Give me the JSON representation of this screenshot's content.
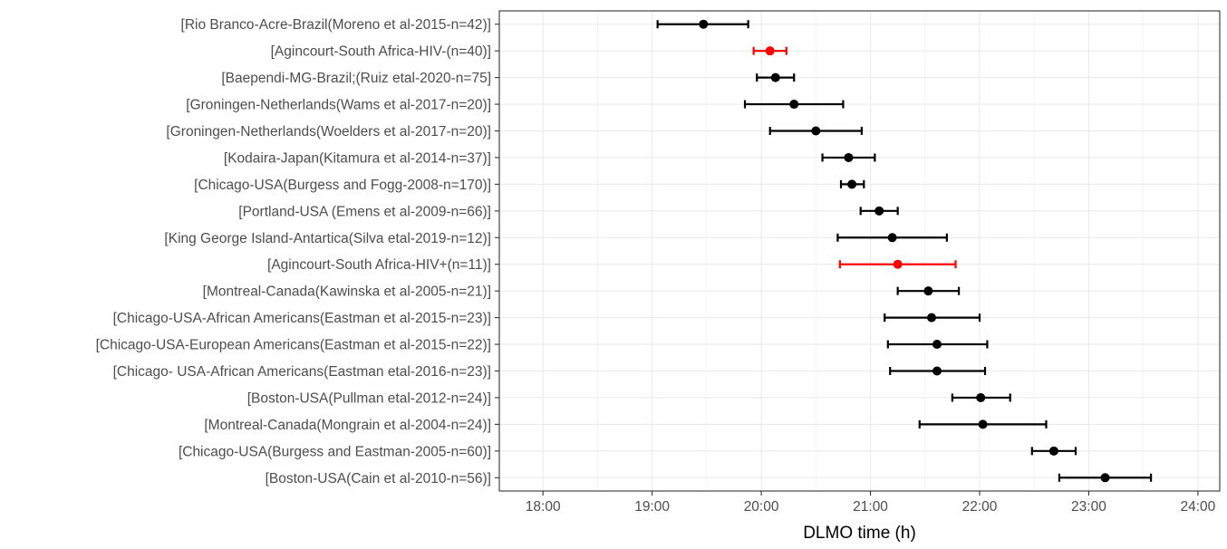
{
  "chart_data": {
    "type": "scatter",
    "title": "",
    "xlabel": "DLMO time (h)",
    "ylabel": "",
    "xlim": [
      17.6,
      24.2
    ],
    "x_ticks": [
      18,
      19,
      20,
      21,
      22,
      23,
      24
    ],
    "x_tick_labels": [
      "18:00",
      "19:00",
      "20:00",
      "21:00",
      "22:00",
      "23:00",
      "24:00"
    ],
    "grid": true,
    "legend": "none",
    "colors": {
      "default": "#000000",
      "highlight": "#ff0000"
    },
    "points": [
      {
        "label": "[Rio Branco-Acre-Brazil(Moreno et al-2015-n=42)]",
        "x": 19.47,
        "low": 19.05,
        "high": 19.88,
        "color": "#000000"
      },
      {
        "label": "[Agincourt-South Africa-HIV-(n=40)]",
        "x": 20.08,
        "low": 19.93,
        "high": 20.23,
        "color": "#ff0000"
      },
      {
        "label": "[Baependi-MG-Brazil;(Ruiz etal-2020-n=75]",
        "x": 20.13,
        "low": 19.96,
        "high": 20.3,
        "color": "#000000"
      },
      {
        "label": "[Groningen-Netherlands(Wams et al-2017-n=20)]",
        "x": 20.3,
        "low": 19.85,
        "high": 20.75,
        "color": "#000000"
      },
      {
        "label": "[Groningen-Netherlands(Woelders et al-2017-n=20)]",
        "x": 20.5,
        "low": 20.08,
        "high": 20.92,
        "color": "#000000"
      },
      {
        "label": "[Kodaira-Japan(Kitamura et al-2014-n=37)]",
        "x": 20.8,
        "low": 20.56,
        "high": 21.04,
        "color": "#000000"
      },
      {
        "label": "[Chicago-USA(Burgess and Fogg-2008-n=170)]",
        "x": 20.83,
        "low": 20.73,
        "high": 20.94,
        "color": "#000000"
      },
      {
        "label": "[Portland-USA (Emens et al-2009-n=66)]",
        "x": 21.08,
        "low": 20.91,
        "high": 21.25,
        "color": "#000000"
      },
      {
        "label": "[King George Island-Antartica(Silva etal-2019-n=12)]",
        "x": 21.2,
        "low": 20.7,
        "high": 21.7,
        "color": "#000000"
      },
      {
        "label": "[Agincourt-South Africa-HIV+(n=11)]",
        "x": 21.25,
        "low": 20.72,
        "high": 21.78,
        "color": "#ff0000"
      },
      {
        "label": "[Montreal-Canada(Kawinska et al-2005-n=21)]",
        "x": 21.53,
        "low": 21.25,
        "high": 21.81,
        "color": "#000000"
      },
      {
        "label": "[Chicago-USA-African Americans(Eastman et al-2015-n=23)]",
        "x": 21.56,
        "low": 21.13,
        "high": 22.0,
        "color": "#000000"
      },
      {
        "label": "[Chicago-USA-European Americans(Eastman et al-2015-n=22)]",
        "x": 21.61,
        "low": 21.16,
        "high": 22.07,
        "color": "#000000"
      },
      {
        "label": "[Chicago- USA-African Americans(Eastman etal-2016-n=23)]",
        "x": 21.61,
        "low": 21.18,
        "high": 22.05,
        "color": "#000000"
      },
      {
        "label": "[Boston-USA(Pullman etal-2012-n=24)]",
        "x": 22.01,
        "low": 21.75,
        "high": 22.28,
        "color": "#000000"
      },
      {
        "label": "[Montreal-Canada(Mongrain et al-2004-n=24)]",
        "x": 22.03,
        "low": 21.45,
        "high": 22.61,
        "color": "#000000"
      },
      {
        "label": "[Chicago-USA(Burgess and Eastman-2005-n=60)]",
        "x": 22.68,
        "low": 22.48,
        "high": 22.88,
        "color": "#000000"
      },
      {
        "label": "[Boston-USA(Cain et al-2010-n=56)]",
        "x": 23.15,
        "low": 22.73,
        "high": 23.57,
        "color": "#000000"
      }
    ]
  }
}
